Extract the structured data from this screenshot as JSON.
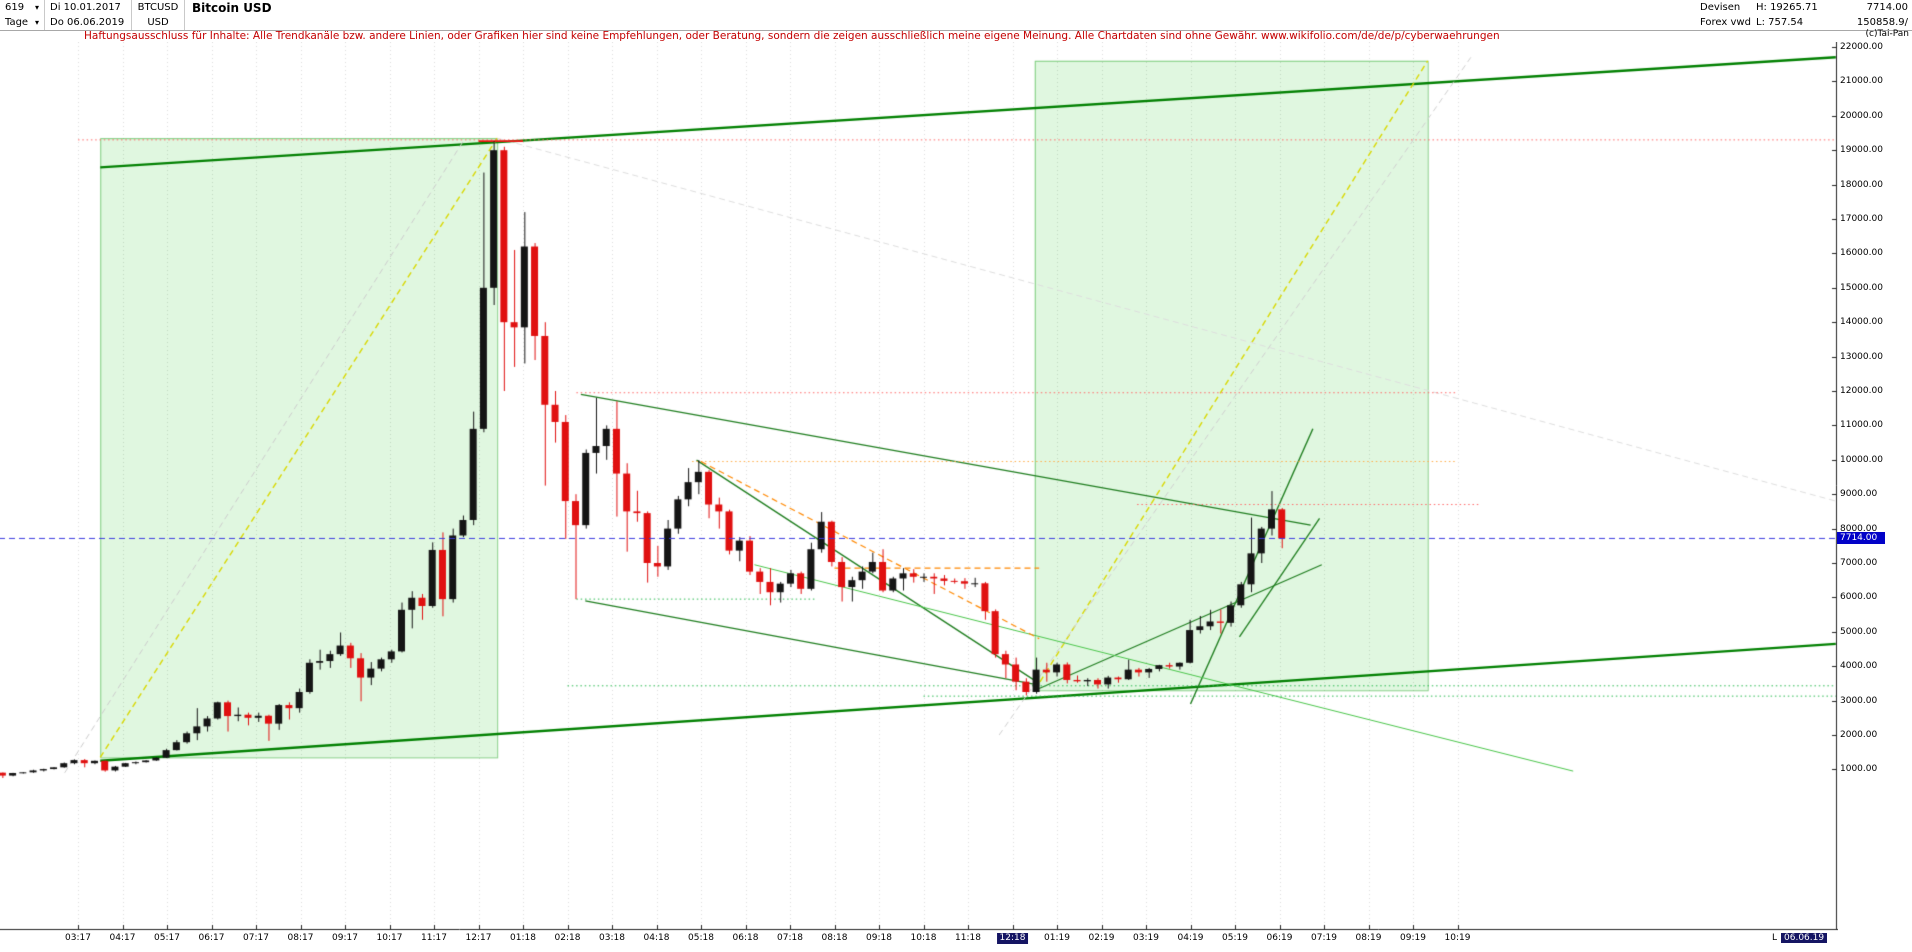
{
  "window": {
    "copyright": "(c)Tai-Pan"
  },
  "header": {
    "bars_count": "619",
    "period": "Tage",
    "start_date": "Di 10.01.2017",
    "end_date": "Do 06.06.2019",
    "symbol": "BTCUSD",
    "currency": "USD",
    "title": "Bitcoin USD",
    "market": "Devisen",
    "feed": "Forex vwd",
    "high": "H: 19265.71",
    "low": "L: 757.54",
    "last_price": "7714.00",
    "volume": "150858.9/"
  },
  "disclaimer": {
    "text": "Haftungsausschluss für Inhalte: Alle Trendkanäle bzw. andere Linien, oder Grafiken hier sind keine Empfehlungen, oder Beratung, sondern die zeigen ausschließlich meine eigene Meinung. Alle Chartdaten sind ohne Gewähr.",
    "link": "www.wikifolio.com/de/de/p/cyberwaehrungen"
  },
  "axes": {
    "current_price_label": "7714.00",
    "end_axis_prefix": "L",
    "end_axis_label": "06.06.19",
    "y_ticks": [
      22000,
      21000,
      20000,
      19000,
      18000,
      17000,
      16000,
      15000,
      14000,
      13000,
      12000,
      11000,
      10000,
      9000,
      8000,
      7000,
      6000,
      5000,
      4000,
      3000,
      2000,
      1000
    ],
    "x_ticks": [
      {
        "label": "03:17",
        "t": 2
      },
      {
        "label": "04:17",
        "t": 3
      },
      {
        "label": "05:17",
        "t": 4
      },
      {
        "label": "06:17",
        "t": 5
      },
      {
        "label": "07:17",
        "t": 6
      },
      {
        "label": "08:17",
        "t": 7
      },
      {
        "label": "09:17",
        "t": 8
      },
      {
        "label": "10:17",
        "t": 9
      },
      {
        "label": "11:17",
        "t": 10
      },
      {
        "label": "12:17",
        "t": 11
      },
      {
        "label": "01:18",
        "t": 12
      },
      {
        "label": "02:18",
        "t": 13
      },
      {
        "label": "03:18",
        "t": 14
      },
      {
        "label": "04:18",
        "t": 15
      },
      {
        "label": "05:18",
        "t": 16
      },
      {
        "label": "06:18",
        "t": 17
      },
      {
        "label": "07:18",
        "t": 18
      },
      {
        "label": "08:18",
        "t": 19
      },
      {
        "label": "09:18",
        "t": 20
      },
      {
        "label": "10:18",
        "t": 21
      },
      {
        "label": "11:18",
        "t": 22
      },
      {
        "label": "12:18",
        "t": 23,
        "highlight": true
      },
      {
        "label": "01:19",
        "t": 24
      },
      {
        "label": "02:19",
        "t": 25
      },
      {
        "label": "03:19",
        "t": 26
      },
      {
        "label": "04:19",
        "t": 27
      },
      {
        "label": "05:19",
        "t": 28
      },
      {
        "label": "06:19",
        "t": 29
      },
      {
        "label": "07:19",
        "t": 30
      },
      {
        "label": "08:19",
        "t": 31
      },
      {
        "label": "09:19",
        "t": 32
      },
      {
        "label": "10:19",
        "t": 33
      }
    ]
  },
  "chart_data": {
    "type": "candlestick",
    "instrument": "Bitcoin USD (BTCUSD)",
    "period": "Tage (daily chart, 619 bars, 10.01.2017 - 06.06.2019)",
    "high": 19265.71,
    "low": 757.54,
    "last": 7714.0,
    "y_axis": {
      "min_label": 1000,
      "max_label": 22000,
      "step": 1000,
      "format": "0.00"
    },
    "t_unit": "months since 2017-01-01; x ticks mark month starts",
    "first_candle_month_offset": 0.3,
    "candle_month_step": 0.23,
    "colors": {
      "up": "#151515",
      "down": "#e01010"
    },
    "ohlc_note": "weekly aggregated O,H,L,C values approximating the daily series",
    "weekly_ohlc": [
      [
        905,
        910,
        750,
        820
      ],
      [
        820,
        900,
        800,
        895
      ],
      [
        895,
        920,
        880,
        915
      ],
      [
        915,
        990,
        900,
        970
      ],
      [
        970,
        1020,
        940,
        1010
      ],
      [
        1010,
        1065,
        1000,
        1060
      ],
      [
        1060,
        1200,
        1050,
        1180
      ],
      [
        1180,
        1290,
        1150,
        1270
      ],
      [
        1270,
        1300,
        1060,
        1180
      ],
      [
        1180,
        1260,
        1150,
        1250
      ],
      [
        1250,
        1260,
        935,
        970
      ],
      [
        970,
        1100,
        940,
        1080
      ],
      [
        1080,
        1190,
        1070,
        1180
      ],
      [
        1180,
        1230,
        1150,
        1210
      ],
      [
        1210,
        1270,
        1200,
        1260
      ],
      [
        1260,
        1350,
        1250,
        1340
      ],
      [
        1340,
        1600,
        1330,
        1560
      ],
      [
        1560,
        1850,
        1550,
        1790
      ],
      [
        1790,
        2100,
        1750,
        2050
      ],
      [
        2050,
        2780,
        1850,
        2250
      ],
      [
        2250,
        2550,
        2100,
        2480
      ],
      [
        2480,
        2970,
        2450,
        2950
      ],
      [
        2950,
        3000,
        2100,
        2550
      ],
      [
        2550,
        2800,
        2400,
        2590
      ],
      [
        2590,
        2650,
        2280,
        2500
      ],
      [
        2500,
        2650,
        2380,
        2560
      ],
      [
        2560,
        2590,
        1830,
        2330
      ],
      [
        2330,
        2900,
        2150,
        2870
      ],
      [
        2870,
        2950,
        2450,
        2780
      ],
      [
        2780,
        3350,
        2650,
        3250
      ],
      [
        3250,
        4200,
        3200,
        4100
      ],
      [
        4100,
        4480,
        3900,
        4150
      ],
      [
        4150,
        4450,
        3950,
        4350
      ],
      [
        4350,
        4980,
        4300,
        4600
      ],
      [
        4600,
        4680,
        3950,
        4230
      ],
      [
        4230,
        4380,
        2980,
        3670
      ],
      [
        3670,
        4120,
        3450,
        3930
      ],
      [
        3930,
        4250,
        3850,
        4200
      ],
      [
        4200,
        4480,
        4100,
        4430
      ],
      [
        4430,
        5850,
        4400,
        5640
      ],
      [
        5640,
        6180,
        5100,
        5990
      ],
      [
        5990,
        6100,
        5350,
        5750
      ],
      [
        5750,
        7600,
        5700,
        7380
      ],
      [
        7380,
        7890,
        5450,
        5950
      ],
      [
        5950,
        8000,
        5850,
        7800
      ],
      [
        7800,
        8380,
        7750,
        8250
      ],
      [
        8250,
        11400,
        8100,
        10900
      ],
      [
        10900,
        18350,
        10800,
        15000
      ],
      [
        15000,
        19265,
        14500,
        19000
      ],
      [
        19000,
        19100,
        12000,
        14000
      ],
      [
        14000,
        16100,
        12700,
        13850
      ],
      [
        13850,
        17200,
        12800,
        16200
      ],
      [
        16200,
        16300,
        12900,
        13600
      ],
      [
        13600,
        14000,
        9250,
        11600
      ],
      [
        11600,
        12000,
        10500,
        11100
      ],
      [
        11100,
        11300,
        7700,
        8800
      ],
      [
        8800,
        9000,
        5950,
        8100
      ],
      [
        8100,
        10300,
        8000,
        10200
      ],
      [
        10200,
        11800,
        9600,
        10400
      ],
      [
        10400,
        11000,
        10000,
        10900
      ],
      [
        10900,
        11700,
        8350,
        9600
      ],
      [
        9600,
        9900,
        7330,
        8500
      ],
      [
        8500,
        9100,
        8200,
        8450
      ],
      [
        8450,
        8500,
        6430,
        7000
      ],
      [
        7000,
        7500,
        6600,
        6900
      ],
      [
        6900,
        8250,
        6800,
        8000
      ],
      [
        8000,
        8950,
        7850,
        8850
      ],
      [
        8850,
        9760,
        8650,
        9350
      ],
      [
        9350,
        9990,
        9000,
        9650
      ],
      [
        9650,
        9700,
        8300,
        8700
      ],
      [
        8700,
        8900,
        8000,
        8500
      ],
      [
        8500,
        8550,
        7250,
        7360
      ],
      [
        7360,
        7750,
        7050,
        7650
      ],
      [
        7650,
        7780,
        6650,
        6750
      ],
      [
        6750,
        6850,
        6100,
        6450
      ],
      [
        6450,
        6850,
        5770,
        6150
      ],
      [
        6150,
        6450,
        5850,
        6400
      ],
      [
        6400,
        6800,
        6300,
        6700
      ],
      [
        6700,
        6750,
        6100,
        6250
      ],
      [
        6250,
        7590,
        6200,
        7400
      ],
      [
        7400,
        8480,
        7300,
        8200
      ],
      [
        8200,
        8230,
        6900,
        7030
      ],
      [
        7030,
        7170,
        5880,
        6300
      ],
      [
        6300,
        6600,
        5880,
        6500
      ],
      [
        6500,
        6900,
        6250,
        6750
      ],
      [
        6750,
        7300,
        6700,
        7030
      ],
      [
        7030,
        7400,
        6150,
        6200
      ],
      [
        6200,
        6600,
        6150,
        6550
      ],
      [
        6550,
        6850,
        6200,
        6700
      ],
      [
        6700,
        6820,
        6430,
        6600
      ],
      [
        6600,
        6700,
        6450,
        6600
      ],
      [
        6600,
        6700,
        6100,
        6550
      ],
      [
        6550,
        6650,
        6350,
        6480
      ],
      [
        6480,
        6550,
        6400,
        6470
      ],
      [
        6470,
        6560,
        6250,
        6400
      ],
      [
        6400,
        6570,
        6300,
        6410
      ],
      [
        6410,
        6450,
        5350,
        5600
      ],
      [
        5600,
        5650,
        4250,
        4350
      ],
      [
        4350,
        4450,
        3650,
        4050
      ],
      [
        4050,
        4250,
        3300,
        3550
      ],
      [
        3550,
        3650,
        3150,
        3250
      ],
      [
        3250,
        4250,
        3200,
        3900
      ],
      [
        3900,
        4100,
        3550,
        3820
      ],
      [
        3820,
        4100,
        3700,
        4050
      ],
      [
        4050,
        4110,
        3500,
        3600
      ],
      [
        3600,
        3730,
        3520,
        3560
      ],
      [
        3560,
        3650,
        3420,
        3600
      ],
      [
        3600,
        3650,
        3350,
        3470
      ],
      [
        3470,
        3720,
        3350,
        3670
      ],
      [
        3670,
        3700,
        3520,
        3620
      ],
      [
        3620,
        4190,
        3600,
        3900
      ],
      [
        3900,
        3950,
        3700,
        3820
      ],
      [
        3820,
        3950,
        3660,
        3920
      ],
      [
        3920,
        4040,
        3850,
        4030
      ],
      [
        4030,
        4100,
        3930,
        3990
      ],
      [
        3990,
        4110,
        3900,
        4100
      ],
      [
        4100,
        5350,
        4080,
        5050
      ],
      [
        5050,
        5460,
        4950,
        5160
      ],
      [
        5160,
        5640,
        5050,
        5300
      ],
      [
        5300,
        5650,
        4950,
        5260
      ],
      [
        5260,
        5880,
        5150,
        5770
      ],
      [
        5770,
        6450,
        5700,
        6380
      ],
      [
        6380,
        8320,
        6150,
        7280
      ],
      [
        7280,
        8050,
        7000,
        8000
      ],
      [
        8000,
        9090,
        7800,
        8560
      ],
      [
        8560,
        8600,
        7430,
        7714
      ]
    ],
    "annotations": {
      "box_fill": "rgba(0,190,0,0.12)",
      "box_stroke": "rgba(40,170,40,0.55)",
      "box_format": "[t1, price_top, t2, price_bottom]",
      "boxes": [
        [
          2.5,
          19350,
          11.42,
          1350
        ],
        [
          23.5,
          21600,
          32.33,
          3300
        ]
      ],
      "line_format": "[t1, price1, t2, price2, color, width_px, style s|d|o, above_candles]",
      "lines": [
        [
          2.5,
          18500,
          41.5,
          21700,
          "#008000",
          2.4,
          "s",
          false
        ],
        [
          2.5,
          1250,
          41.5,
          4650,
          "#008000",
          2.4,
          "s",
          false
        ],
        [
          2.5,
          1350,
          11.42,
          19350,
          "#d8d800",
          1.4,
          "d",
          false
        ],
        [
          23.5,
          3300,
          32.33,
          21600,
          "#d8d800",
          1.4,
          "d",
          false
        ],
        [
          1.7,
          900,
          10.7,
          19350,
          "#cccccc",
          1,
          "d",
          false
        ],
        [
          22.7,
          2000,
          33.3,
          21700,
          "#cfcfcf",
          1,
          "d",
          false
        ],
        [
          11.42,
          19350,
          41.5,
          8800,
          "#dddddd",
          1,
          "d",
          false
        ],
        [
          13.3,
          11900,
          29.7,
          8100,
          "#1e7d1e",
          1.3,
          "s",
          false
        ],
        [
          15.9,
          9990,
          23.6,
          3500,
          "#1e7d1e",
          1.3,
          "s",
          false
        ],
        [
          13.4,
          5900,
          23.6,
          3450,
          "#1e7d1e",
          1.2,
          "s",
          false
        ],
        [
          27.0,
          2900,
          29.75,
          10900,
          "#1e7d1e",
          1.4,
          "s",
          false
        ],
        [
          28.1,
          4850,
          29.9,
          8300,
          "#1e7d1e",
          1.3,
          "s",
          false
        ],
        [
          23.6,
          3350,
          29.95,
          6950,
          "#1e7d1e",
          1.2,
          "s",
          false
        ],
        [
          17.2,
          6950,
          35.6,
          950,
          "#49c549",
          1,
          "s",
          false
        ],
        [
          13.0,
          3430,
          41.5,
          3430,
          "#27b94e",
          1,
          "o",
          false
        ],
        [
          21.0,
          3130,
          41.5,
          3130,
          "#27b94e",
          1,
          "o",
          false
        ],
        [
          13.2,
          5950,
          18.6,
          5950,
          "#27b94e",
          1,
          "o",
          false
        ],
        [
          2.0,
          19300,
          41.5,
          19300,
          "#ff6666",
          1,
          "o",
          false
        ],
        [
          11.0,
          19265,
          12.0,
          19265,
          "#ee1111",
          1.6,
          "s",
          false
        ],
        [
          13.2,
          11950,
          33.0,
          11950,
          "#ff6666",
          1,
          "o",
          false
        ],
        [
          15.8,
          9950,
          33.0,
          9950,
          "#ffab45",
          1,
          "o",
          false
        ],
        [
          25.8,
          8700,
          33.5,
          8700,
          "#ff6666",
          1,
          "o",
          false
        ],
        [
          19.0,
          6850,
          23.6,
          6850,
          "#ff8800",
          1.2,
          "d",
          false
        ],
        [
          16.0,
          9950,
          23.6,
          4800,
          "#ff8800",
          1.2,
          "d",
          false
        ],
        [
          0.0,
          7714,
          41.5,
          7714,
          "#3a3ae0",
          1,
          "d",
          true
        ]
      ]
    }
  }
}
